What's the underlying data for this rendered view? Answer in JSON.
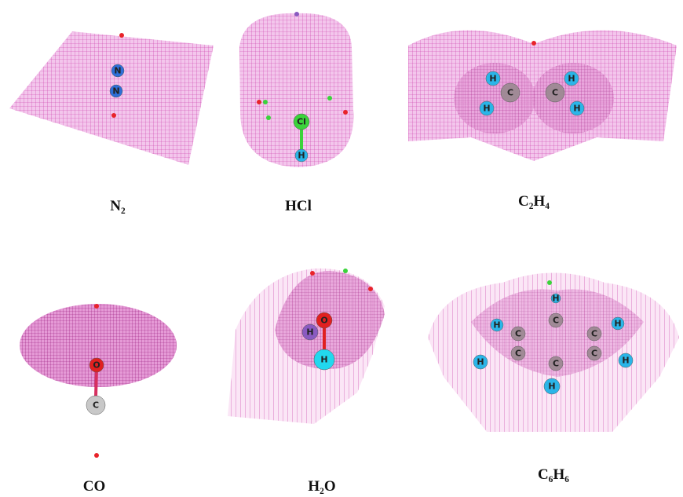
{
  "panels": [
    {
      "label": "N₂",
      "atoms": [
        {
          "symbol": "N",
          "color": "#2e6fd8"
        },
        {
          "symbol": "N",
          "color": "#2e6fd8"
        }
      ]
    },
    {
      "label": "HCl",
      "atoms": [
        {
          "symbol": "Cl",
          "color": "#3bd33b"
        },
        {
          "symbol": "H",
          "color": "#2bb5e8"
        }
      ]
    },
    {
      "label": "C₂H₄",
      "atoms": [
        {
          "symbol": "H",
          "color": "#2bb5e8"
        },
        {
          "symbol": "C",
          "color": "#a08a96"
        },
        {
          "symbol": "H",
          "color": "#2bb5e8"
        },
        {
          "symbol": "C",
          "color": "#a08a96"
        },
        {
          "symbol": "H",
          "color": "#2bb5e8"
        },
        {
          "symbol": "H",
          "color": "#2bb5e8"
        }
      ]
    },
    {
      "label": "CO",
      "atoms": [
        {
          "symbol": "O",
          "color": "#e02020"
        },
        {
          "symbol": "C",
          "color": "#c8c8c8"
        }
      ]
    },
    {
      "label": "H₂O",
      "atoms": [
        {
          "symbol": "O",
          "color": "#e02020"
        },
        {
          "symbol": "H",
          "color": "#8a5ac0"
        },
        {
          "symbol": "H",
          "color": "#22d8ee"
        }
      ]
    },
    {
      "label": "C₆H₆",
      "atoms": [
        {
          "symbol": "C",
          "color": "#a08a96"
        },
        {
          "symbol": "C",
          "color": "#a08a96"
        },
        {
          "symbol": "C",
          "color": "#a08a96"
        },
        {
          "symbol": "C",
          "color": "#a08a96"
        },
        {
          "symbol": "C",
          "color": "#a08a96"
        },
        {
          "symbol": "C",
          "color": "#a08a96"
        },
        {
          "symbol": "H",
          "color": "#2bb5e8"
        },
        {
          "symbol": "H",
          "color": "#2bb5e8"
        },
        {
          "symbol": "H",
          "color": "#2bb5e8"
        },
        {
          "symbol": "H",
          "color": "#2bb5e8"
        },
        {
          "symbol": "H",
          "color": "#2bb5e8"
        },
        {
          "symbol": "H",
          "color": "#2bb5e8"
        }
      ]
    }
  ]
}
